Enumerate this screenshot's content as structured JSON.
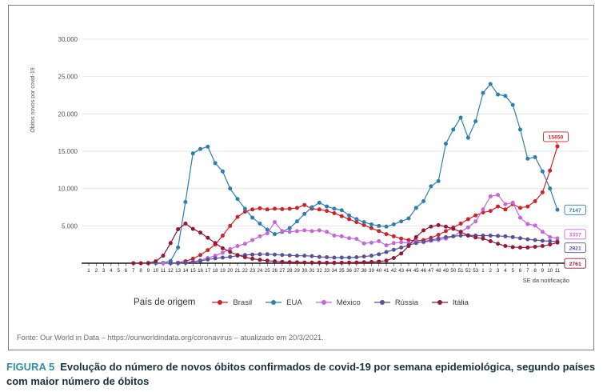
{
  "figure": {
    "source_line": "Fonte: Our World in Data – https://ourworldindata.org/coronavirus – atualizado em 20/3/2021.",
    "caption_tag": "FIGURA 5",
    "caption_text": "Evolução do número de novos óbitos confirmados de covid-19 por semana epidemiológica, segundo países com maior número de óbitos"
  },
  "chart_data": {
    "type": "line",
    "title": "",
    "ylabel": "Óbitos novos por covid-19",
    "xlabel": "SE da notificação",
    "legend_title": "País de origem",
    "legend_position": "bottom",
    "grid": true,
    "ylim": [
      0,
      30000
    ],
    "yticks": [
      5000,
      10000,
      15000,
      20000,
      25000,
      30000
    ],
    "ytick_labels": [
      "5.000",
      "10.000",
      "15.000",
      "20.000",
      "25.000",
      "30.000"
    ],
    "x_labels": [
      "1",
      "2",
      "3",
      "4",
      "5",
      "6",
      "7",
      "8",
      "9",
      "10",
      "11",
      "12",
      "13",
      "14",
      "15",
      "16",
      "17",
      "18",
      "19",
      "20",
      "21",
      "22",
      "23",
      "24",
      "25",
      "26",
      "27",
      "28",
      "29",
      "30",
      "31",
      "32",
      "33",
      "34",
      "35",
      "36",
      "37",
      "38",
      "39",
      "40",
      "41",
      "42",
      "43",
      "44",
      "45",
      "46",
      "47",
      "48",
      "49",
      "50",
      "51",
      "52",
      "53",
      "1",
      "2",
      "3",
      "4",
      "5",
      "6",
      "7",
      "8",
      "9",
      "10",
      "11"
    ],
    "series": [
      {
        "name": "Brasil",
        "color": "#d02128",
        "end_label": "15650",
        "values": [
          null,
          null,
          null,
          null,
          null,
          null,
          null,
          null,
          0,
          0,
          5,
          20,
          60,
          270,
          600,
          1100,
          1750,
          2500,
          3700,
          5000,
          6200,
          6900,
          7200,
          7350,
          7200,
          7300,
          7250,
          7300,
          7400,
          7800,
          7300,
          7200,
          7000,
          6700,
          6300,
          5900,
          5500,
          5100,
          4700,
          4300,
          3900,
          3600,
          3300,
          3100,
          3000,
          3100,
          3400,
          3800,
          4300,
          4800,
          5300,
          5900,
          6400,
          6800,
          7000,
          7600,
          7200,
          7900,
          7400,
          7600,
          8300,
          9500,
          12400,
          15650
        ]
      },
      {
        "name": "EUA",
        "color": "#2e7fb0",
        "end_label": "7147",
        "values": [
          null,
          null,
          null,
          null,
          null,
          null,
          null,
          null,
          0,
          30,
          60,
          300,
          2100,
          8200,
          14700,
          15300,
          15600,
          13400,
          12300,
          10000,
          8600,
          7300,
          6100,
          5300,
          4500,
          3900,
          4200,
          4700,
          5600,
          6600,
          7500,
          8100,
          7600,
          7300,
          7100,
          6400,
          5900,
          5500,
          5200,
          5000,
          4900,
          5200,
          5600,
          6000,
          7400,
          8300,
          10300,
          11000,
          16000,
          17900,
          19500,
          16800,
          19000,
          22800,
          24000,
          22600,
          22400,
          21200,
          17900,
          14000,
          14200,
          12300,
          10000,
          7147
        ]
      },
      {
        "name": "México",
        "color": "#c667d9",
        "end_label": "3337",
        "values": [
          null,
          null,
          null,
          null,
          null,
          null,
          null,
          null,
          null,
          null,
          0,
          0,
          0,
          60,
          180,
          400,
          700,
          1000,
          1400,
          1900,
          2300,
          2600,
          3100,
          3600,
          4000,
          5500,
          4300,
          4200,
          4300,
          4400,
          4300,
          4400,
          4200,
          3700,
          3600,
          3350,
          3250,
          2650,
          2750,
          2950,
          2400,
          2700,
          2800,
          2700,
          2900,
          2800,
          3000,
          3100,
          3300,
          3600,
          4200,
          4800,
          5600,
          7200,
          8950,
          9150,
          7900,
          8100,
          6100,
          5250,
          5050,
          4200,
          3500,
          3337
        ]
      },
      {
        "name": "Rússia",
        "color": "#55519c",
        "end_label": "2921",
        "values": [
          null,
          null,
          null,
          null,
          null,
          null,
          null,
          null,
          null,
          null,
          null,
          0,
          0,
          60,
          150,
          300,
          500,
          650,
          750,
          850,
          1000,
          1100,
          1150,
          1200,
          1200,
          1150,
          1100,
          1050,
          1000,
          1000,
          950,
          850,
          800,
          750,
          750,
          750,
          800,
          900,
          1000,
          1200,
          1500,
          1800,
          2100,
          2400,
          2700,
          2900,
          3100,
          3300,
          3500,
          3600,
          3700,
          3750,
          3700,
          3700,
          3700,
          3650,
          3600,
          3500,
          3350,
          3200,
          3100,
          3000,
          2950,
          2921
        ]
      },
      {
        "name": "Itália",
        "color": "#921739",
        "end_label": "2761",
        "values": [
          null,
          null,
          null,
          null,
          null,
          null,
          0,
          0,
          30,
          250,
          1000,
          2700,
          4550,
          5300,
          4600,
          4100,
          3400,
          2700,
          2000,
          1500,
          1100,
          800,
          600,
          450,
          350,
          250,
          180,
          140,
          120,
          90,
          80,
          80,
          70,
          60,
          70,
          80,
          100,
          130,
          160,
          220,
          350,
          700,
          1300,
          2300,
          3500,
          4400,
          4900,
          5100,
          4900,
          4600,
          4200,
          3700,
          3450,
          3300,
          2950,
          2600,
          2300,
          2150,
          2100,
          2100,
          2200,
          2300,
          2500,
          2761
        ]
      }
    ]
  }
}
